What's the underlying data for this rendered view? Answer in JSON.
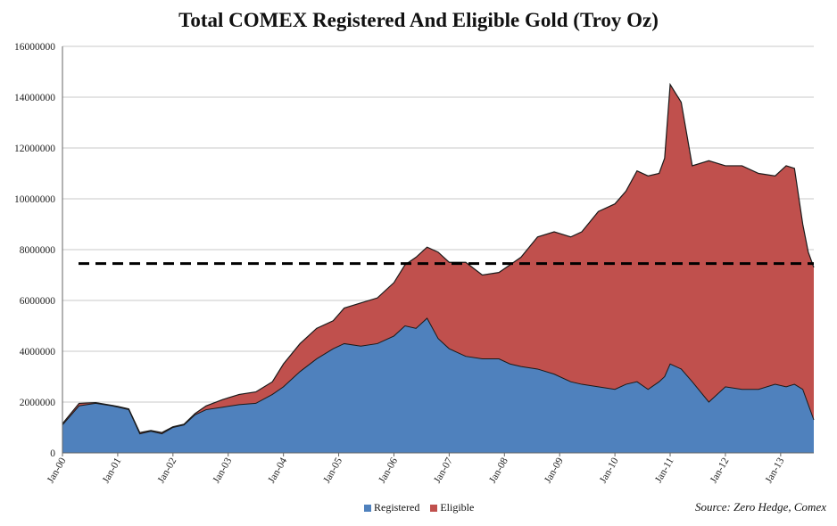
{
  "chart_data": {
    "type": "area",
    "title": "Total COMEX Registered And Eligible Gold (Troy Oz)",
    "ylim": [
      0,
      16000000
    ],
    "yticks": [
      "0",
      "2000000",
      "4000000",
      "6000000",
      "8000000",
      "10000000",
      "12000000",
      "14000000",
      "16000000"
    ],
    "xticks": [
      "Jan-00",
      "Jan-01",
      "Jan-02",
      "Jan-03",
      "Jan-04",
      "Jan-05",
      "Jan-06",
      "Jan-07",
      "Jan-08",
      "Jan-09",
      "Jan-10",
      "Jan-11",
      "Jan-12",
      "Jan-13"
    ],
    "x_range": [
      2000.0,
      2013.6
    ],
    "stacked": true,
    "x": [
      2000.0,
      2000.3,
      2000.6,
      2000.9,
      2001.0,
      2001.2,
      2001.4,
      2001.6,
      2001.8,
      2002.0,
      2002.2,
      2002.4,
      2002.6,
      2002.9,
      2003.2,
      2003.5,
      2003.8,
      2004.0,
      2004.3,
      2004.6,
      2004.9,
      2005.1,
      2005.4,
      2005.7,
      2006.0,
      2006.2,
      2006.4,
      2006.6,
      2006.8,
      2007.0,
      2007.3,
      2007.6,
      2007.9,
      2008.1,
      2008.3,
      2008.6,
      2008.9,
      2009.2,
      2009.4,
      2009.7,
      2010.0,
      2010.2,
      2010.4,
      2010.6,
      2010.8,
      2010.9,
      2011.0,
      2011.2,
      2011.4,
      2011.7,
      2012.0,
      2012.3,
      2012.6,
      2012.9,
      2013.1,
      2013.25,
      2013.4,
      2013.5,
      2013.6
    ],
    "series": [
      {
        "name": "Registered",
        "color": "#4f81bd",
        "values": [
          1100000,
          1850000,
          1950000,
          1850000,
          1800000,
          1700000,
          750000,
          850000,
          750000,
          1000000,
          1100000,
          1500000,
          1700000,
          1800000,
          1900000,
          1950000,
          2300000,
          2600000,
          3200000,
          3700000,
          4100000,
          4300000,
          4200000,
          4300000,
          4600000,
          5000000,
          4900000,
          5300000,
          4500000,
          4100000,
          3800000,
          3700000,
          3700000,
          3500000,
          3400000,
          3300000,
          3100000,
          2800000,
          2700000,
          2600000,
          2500000,
          2700000,
          2800000,
          2500000,
          2800000,
          3000000,
          3500000,
          3300000,
          2800000,
          2000000,
          2600000,
          2500000,
          2500000,
          2700000,
          2600000,
          2700000,
          2500000,
          1900000,
          1300000
        ]
      },
      {
        "name": "Eligible",
        "color": "#c0504d",
        "values": [
          50000,
          100000,
          30000,
          20000,
          30000,
          30000,
          50000,
          30000,
          50000,
          30000,
          30000,
          50000,
          150000,
          300000,
          400000,
          450000,
          500000,
          900000,
          1100000,
          1200000,
          1100000,
          1400000,
          1700000,
          1800000,
          2100000,
          2400000,
          2800000,
          2800000,
          3400000,
          3400000,
          3700000,
          3300000,
          3400000,
          3900000,
          4300000,
          5200000,
          5600000,
          5700000,
          6000000,
          6900000,
          7300000,
          7600000,
          8300000,
          8400000,
          8200000,
          8600000,
          11000000,
          10500000,
          8500000,
          9500000,
          8700000,
          8800000,
          8500000,
          8200000,
          8700000,
          8500000,
          6500000,
          6000000,
          6000000
        ]
      }
    ],
    "reference_line": {
      "value": 7450000,
      "style": "dashed",
      "color": "#000000"
    },
    "grid": "horizontal",
    "legend_position": "bottom",
    "source": "Source: Zero Hedge, Comex"
  }
}
